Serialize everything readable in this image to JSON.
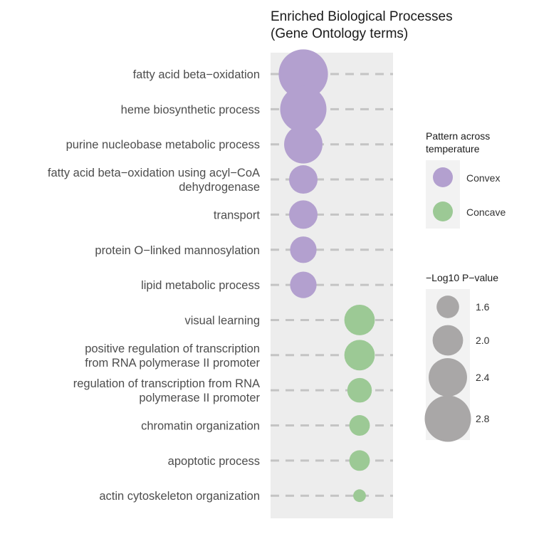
{
  "chart_data": {
    "type": "scatter",
    "title_lines": [
      "Enriched Biological Processes",
      "(Gene Ontology terms)"
    ],
    "x_groups": [
      "Convex",
      "Concave"
    ],
    "points": [
      {
        "label_lines": [
          "fatty acid beta−oxidation"
        ],
        "pattern": "Convex",
        "neglog10p": 2.95
      },
      {
        "label_lines": [
          "heme biosynthetic process"
        ],
        "pattern": "Convex",
        "neglog10p": 2.8
      },
      {
        "label_lines": [
          "purine nucleobase metabolic process"
        ],
        "pattern": "Convex",
        "neglog10p": 2.4
      },
      {
        "label_lines": [
          "fatty acid beta−oxidation using acyl−CoA",
          "dehydrogenase"
        ],
        "pattern": "Convex",
        "neglog10p": 1.9
      },
      {
        "label_lines": [
          "transport"
        ],
        "pattern": "Convex",
        "neglog10p": 1.9
      },
      {
        "label_lines": [
          "protein O−linked mannosylation"
        ],
        "pattern": "Convex",
        "neglog10p": 1.8
      },
      {
        "label_lines": [
          "lipid metabolic process"
        ],
        "pattern": "Convex",
        "neglog10p": 1.8
      },
      {
        "label_lines": [
          "visual learning"
        ],
        "pattern": "Concave",
        "neglog10p": 2.0
      },
      {
        "label_lines": [
          "positive regulation of transcription",
          "from RNA polymerase II promoter"
        ],
        "pattern": "Concave",
        "neglog10p": 2.0
      },
      {
        "label_lines": [
          "regulation of transcription from RNA",
          "polymerase II promoter"
        ],
        "pattern": "Concave",
        "neglog10p": 1.7
      },
      {
        "label_lines": [
          "chromatin organization"
        ],
        "pattern": "Concave",
        "neglog10p": 1.5
      },
      {
        "label_lines": [
          "apoptotic process"
        ],
        "pattern": "Concave",
        "neglog10p": 1.5
      },
      {
        "label_lines": [
          "actin cytoskeleton organization"
        ],
        "pattern": "Concave",
        "neglog10p": 1.1
      }
    ],
    "legend_color": {
      "title_lines": [
        "Pattern across",
        "temperature"
      ],
      "items": [
        {
          "label": "Convex",
          "color": "#b3a0cf"
        },
        {
          "label": "Concave",
          "color": "#9cc995"
        }
      ]
    },
    "legend_size": {
      "title": "−Log10 P−value",
      "items": [
        {
          "label": "1.6",
          "value": 1.6
        },
        {
          "label": "2.0",
          "value": 2.0
        },
        {
          "label": "2.4",
          "value": 2.4
        },
        {
          "label": "2.8",
          "value": 2.8
        }
      ],
      "color": "#a9a7a7"
    },
    "colors": {
      "panel": "#ededed",
      "gridline": "#c4c4c4",
      "legend_key_bg": "#f2f2f2"
    }
  }
}
